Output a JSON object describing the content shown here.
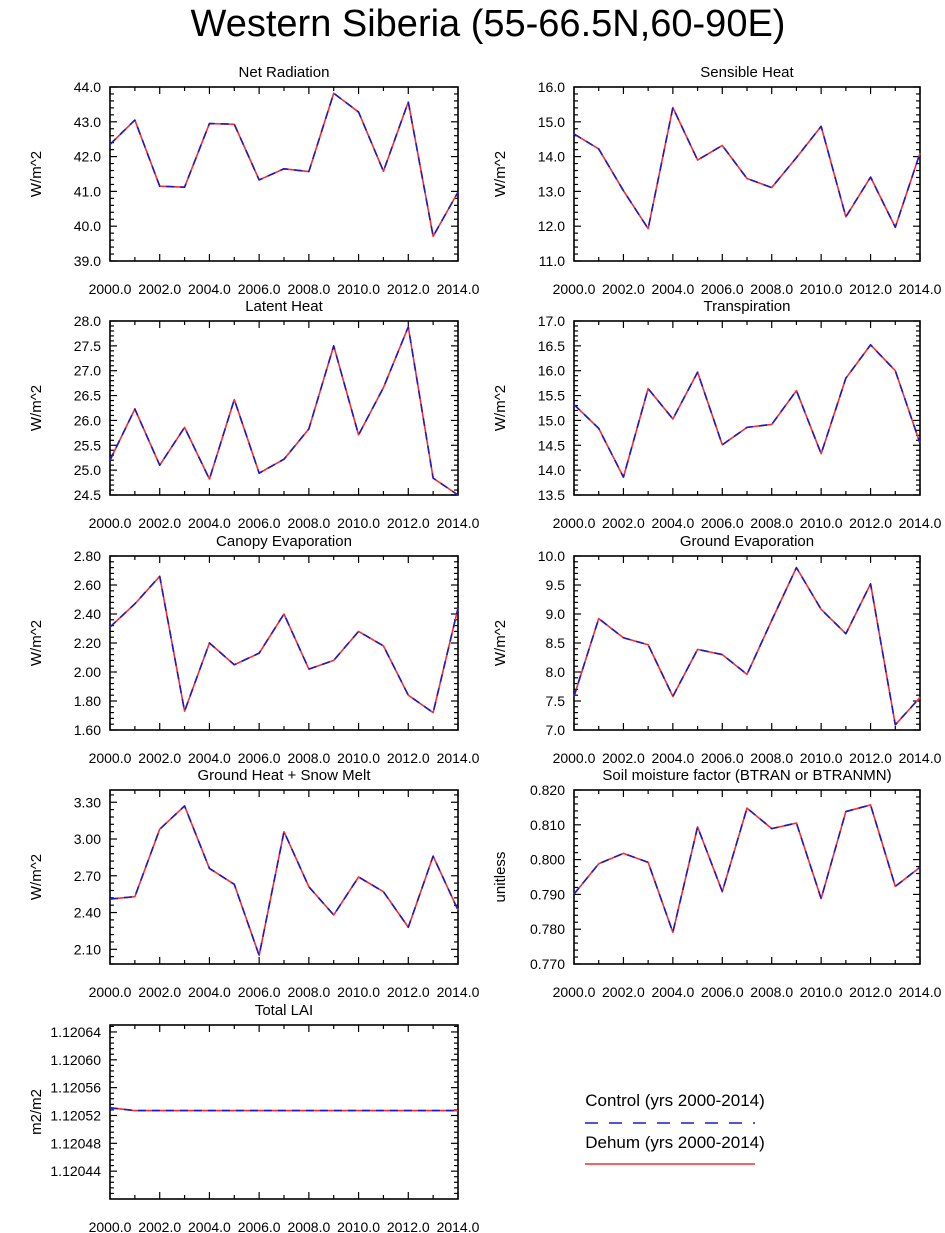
{
  "title": "Western Siberia (55-66.5N,60-90E)",
  "colors": {
    "control": "#1a1acc",
    "dehum": "#ff2a2a",
    "frame": "#000000"
  },
  "legend": {
    "control_label": "Control (yrs 2000-2014)",
    "dehum_label": "Dehum (yrs 2000-2014)"
  },
  "chart_data": [
    {
      "type": "line",
      "title": "Net Radiation",
      "ylabel": "W/m^2",
      "x": [
        2000,
        2001,
        2002,
        2003,
        2004,
        2005,
        2006,
        2007,
        2008,
        2009,
        2010,
        2011,
        2012,
        2013,
        2014
      ],
      "xlim": [
        2000,
        2014
      ],
      "xticks": [
        "2000.0",
        "2002.0",
        "2004.0",
        "2006.0",
        "2008.0",
        "2010.0",
        "2012.0",
        "2014.0"
      ],
      "ylim": [
        39,
        44
      ],
      "yticks": [
        "39.0",
        "40.0",
        "41.0",
        "42.0",
        "43.0",
        "44.0"
      ],
      "series": [
        {
          "name": "Control",
          "values": [
            42.35,
            43.05,
            41.15,
            41.12,
            42.95,
            42.93,
            41.33,
            41.65,
            41.57,
            43.82,
            43.28,
            41.58,
            43.57,
            39.71,
            40.98
          ]
        },
        {
          "name": "Dehum",
          "values": [
            42.35,
            43.05,
            41.15,
            41.12,
            42.95,
            42.93,
            41.33,
            41.65,
            41.57,
            43.82,
            43.28,
            41.58,
            43.57,
            39.71,
            40.98
          ]
        }
      ]
    },
    {
      "type": "line",
      "title": "Sensible Heat",
      "ylabel": "W/m^2",
      "x": [
        2000,
        2001,
        2002,
        2003,
        2004,
        2005,
        2006,
        2007,
        2008,
        2009,
        2010,
        2011,
        2012,
        2013,
        2014
      ],
      "xlim": [
        2000,
        2014
      ],
      "xticks": [
        "2000.0",
        "2002.0",
        "2004.0",
        "2006.0",
        "2008.0",
        "2010.0",
        "2012.0",
        "2014.0"
      ],
      "ylim": [
        11,
        16
      ],
      "yticks": [
        "11.0",
        "12.0",
        "13.0",
        "14.0",
        "15.0",
        "16.0"
      ],
      "series": [
        {
          "name": "Control",
          "values": [
            14.65,
            14.22,
            13.02,
            11.93,
            15.41,
            13.9,
            14.32,
            13.37,
            13.11,
            13.97,
            14.87,
            12.27,
            13.41,
            11.97,
            14.1
          ]
        },
        {
          "name": "Dehum",
          "values": [
            14.65,
            14.22,
            13.02,
            11.93,
            15.41,
            13.9,
            14.32,
            13.37,
            13.11,
            13.97,
            14.87,
            12.27,
            13.41,
            11.97,
            14.1
          ]
        }
      ]
    },
    {
      "type": "line",
      "title": "Latent Heat",
      "ylabel": "W/m^2",
      "x": [
        2000,
        2001,
        2002,
        2003,
        2004,
        2005,
        2006,
        2007,
        2008,
        2009,
        2010,
        2011,
        2012,
        2013,
        2014
      ],
      "xlim": [
        2000,
        2014
      ],
      "xticks": [
        "2000.0",
        "2002.0",
        "2004.0",
        "2006.0",
        "2008.0",
        "2010.0",
        "2012.0",
        "2014.0"
      ],
      "ylim": [
        24.5,
        28
      ],
      "yticks": [
        "24.5",
        "25.0",
        "25.5",
        "26.0",
        "26.5",
        "27.0",
        "27.5",
        "28.0"
      ],
      "series": [
        {
          "name": "Control",
          "values": [
            25.2,
            26.23,
            25.1,
            25.86,
            24.82,
            26.42,
            24.94,
            25.22,
            25.83,
            27.5,
            25.71,
            26.66,
            27.88,
            24.84,
            24.5
          ]
        },
        {
          "name": "Dehum",
          "values": [
            25.2,
            26.23,
            25.1,
            25.86,
            24.82,
            26.42,
            24.94,
            25.22,
            25.83,
            27.5,
            25.71,
            26.66,
            27.88,
            24.84,
            24.5
          ]
        }
      ]
    },
    {
      "type": "line",
      "title": "Transpiration",
      "ylabel": "W/m^2",
      "x": [
        2000,
        2001,
        2002,
        2003,
        2004,
        2005,
        2006,
        2007,
        2008,
        2009,
        2010,
        2011,
        2012,
        2013,
        2014
      ],
      "xlim": [
        2000,
        2014
      ],
      "xticks": [
        "2000.0",
        "2002.0",
        "2004.0",
        "2006.0",
        "2008.0",
        "2010.0",
        "2012.0",
        "2014.0"
      ],
      "ylim": [
        13.5,
        17
      ],
      "yticks": [
        "13.5",
        "14.0",
        "14.5",
        "15.0",
        "15.5",
        "16.0",
        "16.5",
        "17.0"
      ],
      "series": [
        {
          "name": "Control",
          "values": [
            15.32,
            14.84,
            13.86,
            15.64,
            15.03,
            15.97,
            14.51,
            14.86,
            14.92,
            15.6,
            14.33,
            15.85,
            16.52,
            16.0,
            14.54
          ]
        },
        {
          "name": "Dehum",
          "values": [
            15.32,
            14.84,
            13.86,
            15.64,
            15.03,
            15.97,
            14.51,
            14.86,
            14.92,
            15.6,
            14.33,
            15.85,
            16.52,
            16.0,
            14.54
          ]
        }
      ]
    },
    {
      "type": "line",
      "title": "Canopy Evaporation",
      "ylabel": "W/m^2",
      "x": [
        2000,
        2001,
        2002,
        2003,
        2004,
        2005,
        2006,
        2007,
        2008,
        2009,
        2010,
        2011,
        2012,
        2013,
        2014
      ],
      "xlim": [
        2000,
        2014
      ],
      "xticks": [
        "2000.0",
        "2002.0",
        "2004.0",
        "2006.0",
        "2008.0",
        "2010.0",
        "2012.0",
        "2014.0"
      ],
      "ylim": [
        1.6,
        2.8
      ],
      "yticks": [
        "1.60",
        "1.80",
        "2.00",
        "2.20",
        "2.40",
        "2.60",
        "2.80"
      ],
      "series": [
        {
          "name": "Control",
          "values": [
            2.31,
            2.47,
            2.66,
            1.73,
            2.2,
            2.05,
            2.13,
            2.4,
            2.02,
            2.08,
            2.28,
            2.18,
            1.84,
            1.72,
            2.44
          ]
        },
        {
          "name": "Dehum",
          "values": [
            2.31,
            2.47,
            2.66,
            1.73,
            2.2,
            2.05,
            2.13,
            2.4,
            2.02,
            2.08,
            2.28,
            2.18,
            1.84,
            1.72,
            2.44
          ]
        }
      ]
    },
    {
      "type": "line",
      "title": "Ground Evaporation",
      "ylabel": "W/m^2",
      "x": [
        2000,
        2001,
        2002,
        2003,
        2004,
        2005,
        2006,
        2007,
        2008,
        2009,
        2010,
        2011,
        2012,
        2013,
        2014
      ],
      "xlim": [
        2000,
        2014
      ],
      "xticks": [
        "2000.0",
        "2002.0",
        "2004.0",
        "2006.0",
        "2008.0",
        "2010.0",
        "2012.0",
        "2014.0"
      ],
      "ylim": [
        7,
        10
      ],
      "yticks": [
        "7.0",
        "7.5",
        "8.0",
        "8.5",
        "9.0",
        "9.5",
        "10.0"
      ],
      "series": [
        {
          "name": "Control",
          "values": [
            7.58,
            8.92,
            8.59,
            8.47,
            7.58,
            8.39,
            8.3,
            7.96,
            8.89,
            9.8,
            9.08,
            8.66,
            9.52,
            7.09,
            7.56
          ]
        },
        {
          "name": "Dehum",
          "values": [
            7.58,
            8.92,
            8.59,
            8.47,
            7.58,
            8.39,
            8.3,
            7.96,
            8.89,
            9.8,
            9.08,
            8.66,
            9.52,
            7.09,
            7.56
          ]
        }
      ]
    },
    {
      "type": "line",
      "title": "Ground Heat + Snow Melt",
      "ylabel": "W/m^2",
      "x": [
        2000,
        2001,
        2002,
        2003,
        2004,
        2005,
        2006,
        2007,
        2008,
        2009,
        2010,
        2011,
        2012,
        2013,
        2014
      ],
      "xlim": [
        2000,
        2014
      ],
      "xticks": [
        "2000.0",
        "2002.0",
        "2004.0",
        "2006.0",
        "2008.0",
        "2010.0",
        "2012.0",
        "2014.0"
      ],
      "ylim": [
        1.98,
        3.4
      ],
      "yticks": [
        "2.10",
        "2.40",
        "2.70",
        "3.00",
        "3.30"
      ],
      "yticks_at": [
        2.1,
        2.4,
        2.7,
        3.0,
        3.3
      ],
      "series": [
        {
          "name": "Control",
          "values": [
            2.51,
            2.53,
            3.08,
            3.27,
            2.76,
            2.63,
            2.05,
            3.06,
            2.61,
            2.38,
            2.69,
            2.57,
            2.28,
            2.86,
            2.42
          ]
        },
        {
          "name": "Dehum",
          "values": [
            2.51,
            2.53,
            3.08,
            3.27,
            2.76,
            2.63,
            2.05,
            3.06,
            2.61,
            2.38,
            2.69,
            2.57,
            2.28,
            2.86,
            2.42
          ]
        }
      ]
    },
    {
      "type": "line",
      "title": "Soil moisture factor (BTRAN or BTRANMN)",
      "ylabel": "unitless",
      "x": [
        2000,
        2001,
        2002,
        2003,
        2004,
        2005,
        2006,
        2007,
        2008,
        2009,
        2010,
        2011,
        2012,
        2013,
        2014
      ],
      "xlim": [
        2000,
        2014
      ],
      "xticks": [
        "2000.0",
        "2002.0",
        "2004.0",
        "2006.0",
        "2008.0",
        "2010.0",
        "2012.0",
        "2014.0"
      ],
      "ylim": [
        0.77,
        0.82
      ],
      "yticks": [
        "0.770",
        "0.780",
        "0.790",
        "0.800",
        "0.810",
        "0.820"
      ],
      "series": [
        {
          "name": "Control",
          "values": [
            0.7901,
            0.7988,
            0.8018,
            0.7992,
            0.7791,
            0.8094,
            0.7908,
            0.8148,
            0.8089,
            0.8105,
            0.7888,
            0.8138,
            0.8157,
            0.7923,
            0.7978
          ]
        },
        {
          "name": "Dehum",
          "values": [
            0.7901,
            0.7988,
            0.8018,
            0.7992,
            0.7791,
            0.8094,
            0.7908,
            0.8148,
            0.8089,
            0.8105,
            0.7888,
            0.8138,
            0.8157,
            0.7923,
            0.7978
          ]
        }
      ]
    },
    {
      "type": "line",
      "title": "Total LAI",
      "ylabel": "m2/m2",
      "x": [
        2000,
        2001,
        2002,
        2003,
        2004,
        2005,
        2006,
        2007,
        2008,
        2009,
        2010,
        2011,
        2012,
        2013,
        2014
      ],
      "xlim": [
        2000,
        2014
      ],
      "xticks": [
        "2000.0",
        "2002.0",
        "2004.0",
        "2006.0",
        "2008.0",
        "2010.0",
        "2012.0",
        "2014.0"
      ],
      "ylim": [
        1.1204,
        1.12065
      ],
      "yticks": [
        "1.12044",
        "1.12048",
        "1.12052",
        "1.12056",
        "1.12060",
        "1.12064"
      ],
      "yticks_at": [
        1.12044,
        1.12048,
        1.12052,
        1.12056,
        1.1206,
        1.12064
      ],
      "series": [
        {
          "name": "Control",
          "values": [
            1.120531,
            1.120527,
            1.120527,
            1.120527,
            1.120527,
            1.120527,
            1.120527,
            1.120527,
            1.120527,
            1.120527,
            1.120527,
            1.120527,
            1.120527,
            1.120527,
            1.120527
          ]
        },
        {
          "name": "Dehum",
          "values": [
            1.120531,
            1.120527,
            1.120527,
            1.120527,
            1.120527,
            1.120527,
            1.120527,
            1.120527,
            1.120527,
            1.120527,
            1.120527,
            1.120527,
            1.120527,
            1.120527,
            1.120527
          ]
        }
      ]
    }
  ]
}
